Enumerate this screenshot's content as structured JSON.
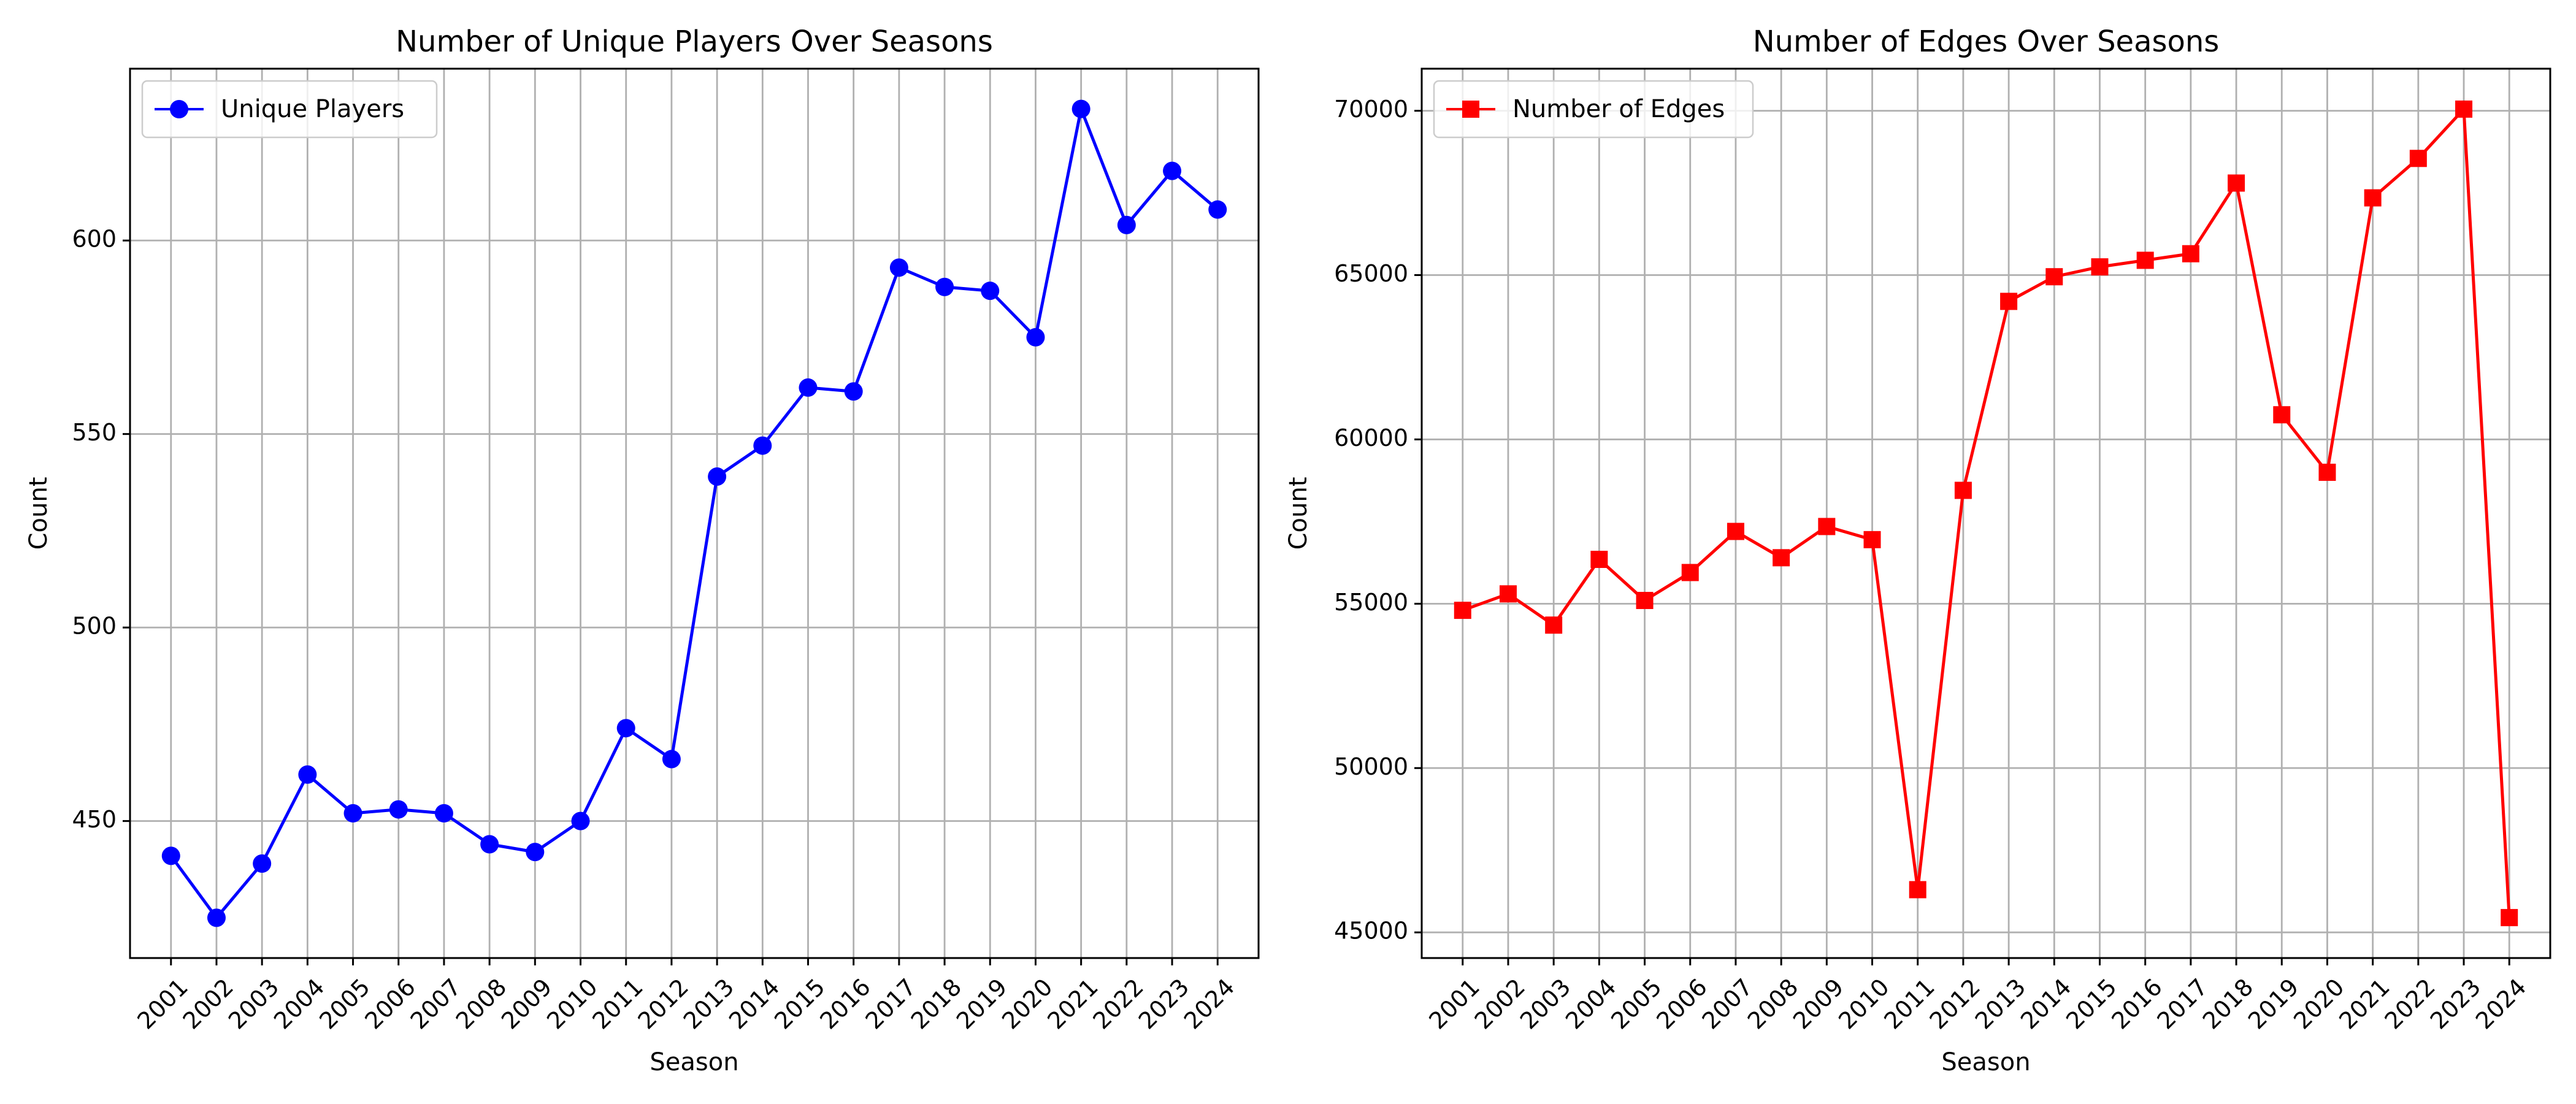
{
  "chart_data": [
    {
      "type": "line",
      "title": "Number of Unique Players Over Seasons",
      "xlabel": "Season",
      "ylabel": "Count",
      "categories": [
        "2001",
        "2002",
        "2003",
        "2004",
        "2005",
        "2006",
        "2007",
        "2008",
        "2009",
        "2010",
        "2011",
        "2012",
        "2013",
        "2014",
        "2015",
        "2016",
        "2017",
        "2018",
        "2019",
        "2020",
        "2021",
        "2022",
        "2023",
        "2024"
      ],
      "series": [
        {
          "name": "Unique Players",
          "color": "#0000ff",
          "marker": "circle",
          "values": [
            441,
            425,
            439,
            462,
            452,
            453,
            452,
            444,
            442,
            450,
            474,
            466,
            539,
            547,
            562,
            561,
            593,
            588,
            587,
            575,
            634,
            604,
            618,
            608
          ]
        }
      ],
      "ylim": [
        414.6,
        644.4
      ],
      "yticks": [
        450,
        500,
        550,
        600
      ],
      "ytick_labels": [
        "450",
        "500",
        "550",
        "600"
      ],
      "grid": true,
      "legend": "upper-left"
    },
    {
      "type": "line",
      "title": "Number of Edges Over Seasons",
      "xlabel": "Season",
      "ylabel": "Count",
      "categories": [
        "2001",
        "2002",
        "2003",
        "2004",
        "2005",
        "2006",
        "2007",
        "2008",
        "2009",
        "2010",
        "2011",
        "2012",
        "2013",
        "2014",
        "2015",
        "2016",
        "2017",
        "2018",
        "2019",
        "2020",
        "2021",
        "2022",
        "2023",
        "2024"
      ],
      "series": [
        {
          "name": "Number of Edges",
          "color": "#ff0000",
          "marker": "square",
          "values": [
            54800,
            55300,
            54350,
            56350,
            55100,
            55950,
            57200,
            56400,
            57350,
            56950,
            46300,
            58450,
            64200,
            64950,
            65250,
            65450,
            65650,
            67800,
            60750,
            59000,
            67350,
            68550,
            70050,
            45450
          ]
        }
      ],
      "ylim": [
        44220,
        71280
      ],
      "yticks": [
        45000,
        50000,
        55000,
        60000,
        65000,
        70000
      ],
      "ytick_labels": [
        "45000",
        "50000",
        "55000",
        "60000",
        "65000",
        "70000"
      ],
      "grid": true,
      "legend": "upper-left"
    }
  ]
}
